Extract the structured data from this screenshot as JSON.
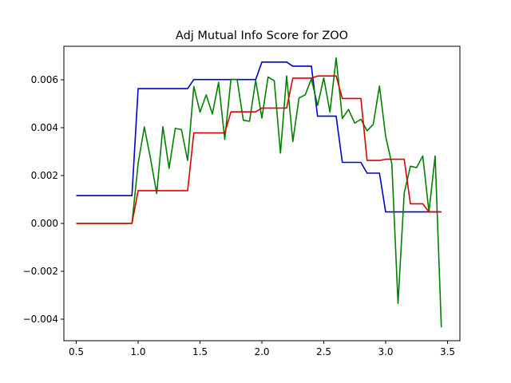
{
  "chart_data": {
    "type": "line",
    "title": "Adj Mutual Info Score for ZOO",
    "xlabel": "",
    "ylabel": "",
    "xlim": [
      0.4,
      3.6
    ],
    "ylim": [
      -0.0049,
      0.0074
    ],
    "x_ticks": [
      {
        "value": 0.5,
        "label": "0.5"
      },
      {
        "value": 1.0,
        "label": "1.0"
      },
      {
        "value": 1.5,
        "label": "1.5"
      },
      {
        "value": 2.0,
        "label": "2.0"
      },
      {
        "value": 2.5,
        "label": "2.5"
      },
      {
        "value": 3.0,
        "label": "3.0"
      },
      {
        "value": 3.5,
        "label": "3.5"
      }
    ],
    "y_ticks": [
      {
        "value": -0.004,
        "label": "−0.004"
      },
      {
        "value": -0.002,
        "label": "−0.002"
      },
      {
        "value": 0.0,
        "label": "0.000"
      },
      {
        "value": 0.002,
        "label": "0.002"
      },
      {
        "value": 0.004,
        "label": "0.004"
      },
      {
        "value": 0.006,
        "label": "0.006"
      }
    ],
    "grid": false,
    "legend": "none",
    "x": [
      0.5,
      0.55,
      0.6,
      0.65,
      0.7,
      0.75,
      0.8,
      0.85,
      0.9,
      0.95,
      1.0,
      1.05,
      1.1,
      1.15,
      1.2,
      1.25,
      1.3,
      1.35,
      1.4,
      1.45,
      1.5,
      1.55,
      1.6,
      1.65,
      1.7,
      1.75,
      1.8,
      1.85,
      1.9,
      1.95,
      2.0,
      2.05,
      2.1,
      2.15,
      2.2,
      2.25,
      2.3,
      2.35,
      2.4,
      2.45,
      2.5,
      2.55,
      2.6,
      2.65,
      2.7,
      2.75,
      2.8,
      2.85,
      2.9,
      2.95,
      3.0,
      3.05,
      3.1,
      3.15,
      3.2,
      3.25,
      3.3,
      3.35,
      3.4,
      3.45
    ],
    "series": [
      {
        "color": "#0000cc",
        "values": [
          0.00116,
          0.00116,
          0.00116,
          0.00116,
          0.00116,
          0.00116,
          0.00116,
          0.00116,
          0.00116,
          0.00116,
          0.00563,
          0.00563,
          0.00563,
          0.00563,
          0.00563,
          0.00563,
          0.00563,
          0.00563,
          0.00563,
          0.00601,
          0.00601,
          0.00601,
          0.00601,
          0.00601,
          0.00601,
          0.00601,
          0.00601,
          0.00601,
          0.00601,
          0.00601,
          0.00674,
          0.00674,
          0.00674,
          0.00674,
          0.00674,
          0.00657,
          0.00657,
          0.00657,
          0.00657,
          0.00448,
          0.00448,
          0.00448,
          0.00448,
          0.00255,
          0.00255,
          0.00255,
          0.00255,
          0.0021,
          0.0021,
          0.0021,
          0.00048,
          0.00048,
          0.00048,
          0.00048,
          0.00048,
          0.00048,
          0.00048,
          0.00048,
          0.00048,
          0.00048
        ]
      },
      {
        "color": "#008000",
        "values": [
          0.0,
          0.0,
          0.0,
          0.0,
          0.0,
          0.0,
          0.0,
          0.0,
          0.0,
          0.0,
          0.0025,
          0.00403,
          0.00271,
          0.00125,
          0.00404,
          0.0023,
          0.00397,
          0.00392,
          0.00263,
          0.00572,
          0.00465,
          0.00537,
          0.00457,
          0.00589,
          0.00351,
          0.00602,
          0.00601,
          0.00431,
          0.00427,
          0.00598,
          0.0044,
          0.00612,
          0.00596,
          0.00294,
          0.00616,
          0.00342,
          0.00524,
          0.00537,
          0.00604,
          0.00493,
          0.00608,
          0.00465,
          0.00692,
          0.00438,
          0.00476,
          0.00419,
          0.00435,
          0.00387,
          0.00414,
          0.00574,
          0.00364,
          0.00249,
          -0.00334,
          0.00127,
          0.00239,
          0.00233,
          0.00282,
          0.00048,
          0.00282,
          -0.00434
        ]
      },
      {
        "color": "#dd0000",
        "values": [
          0.0,
          0.0,
          0.0,
          0.0,
          0.0,
          0.0,
          0.0,
          0.0,
          0.0,
          0.0,
          0.00137,
          0.00137,
          0.00137,
          0.00137,
          0.00137,
          0.00137,
          0.00137,
          0.00137,
          0.00137,
          0.00378,
          0.00378,
          0.00378,
          0.00378,
          0.00378,
          0.00378,
          0.00466,
          0.00466,
          0.00466,
          0.00466,
          0.00466,
          0.00482,
          0.00482,
          0.00482,
          0.00482,
          0.00482,
          0.00607,
          0.00607,
          0.00607,
          0.00607,
          0.00616,
          0.00616,
          0.00616,
          0.00616,
          0.00522,
          0.00522,
          0.00522,
          0.00522,
          0.00263,
          0.00263,
          0.00263,
          0.00268,
          0.00268,
          0.00268,
          0.00268,
          0.00082,
          0.00082,
          0.00082,
          0.00048,
          0.00048,
          0.00048
        ]
      }
    ]
  }
}
